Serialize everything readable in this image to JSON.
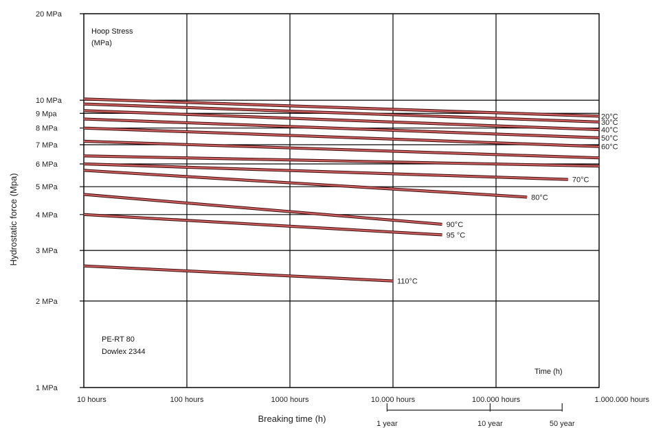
{
  "chart_data": {
    "type": "line",
    "xlabel": "Breaking time (h)",
    "ylabel": "Hydrostatic force (Mpa)",
    "x_scale": "log",
    "y_scale": "log",
    "xlim": [
      10,
      1000000
    ],
    "ylim": [
      1,
      20
    ],
    "grid": true,
    "x_ticks": [
      {
        "value": 10,
        "label": "10 hours"
      },
      {
        "value": 100,
        "label": "100 hours"
      },
      {
        "value": 1000,
        "label": "1000 hours"
      },
      {
        "value": 10000,
        "label": "10.000 hours"
      },
      {
        "value": 100000,
        "label": "100.000 hours"
      },
      {
        "value": 1000000,
        "label": "1.000.000 hours"
      }
    ],
    "y_ticks": [
      {
        "value": 20,
        "label": "20 MPa"
      },
      {
        "value": 10,
        "label": "10 MPa"
      },
      {
        "value": 9,
        "label": "9 Mpa"
      },
      {
        "value": 8,
        "label": "8 MPa"
      },
      {
        "value": 7,
        "label": "7 MPa"
      },
      {
        "value": 6,
        "label": "6 MPa"
      },
      {
        "value": 5,
        "label": "5 MPa"
      },
      {
        "value": 4,
        "label": "4 MPa"
      },
      {
        "value": 3,
        "label": "3 MPa"
      },
      {
        "value": 2,
        "label": "2 MPa"
      },
      {
        "value": 1,
        "label": "1 MPa"
      }
    ],
    "time_marks": [
      {
        "label": "1 year",
        "value": 8760
      },
      {
        "label": "10 year",
        "value": 87600
      },
      {
        "label": "50 year",
        "value": 438000
      }
    ],
    "annotations": {
      "top_left": [
        "Hoop Stress",
        "(MPa)"
      ],
      "bottom_left": [
        "PE-RT 80",
        "Dowlex 2344"
      ],
      "bottom_right": "Time (h)"
    },
    "series": [
      {
        "name": "20°C",
        "x": [
          10,
          1000000
        ],
        "y": [
          10.1,
          8.8
        ]
      },
      {
        "name": "30°C",
        "x": [
          10,
          1000000
        ],
        "y": [
          9.7,
          8.4
        ]
      },
      {
        "name": "40°C",
        "x": [
          10,
          1000000
        ],
        "y": [
          9.2,
          7.9
        ]
      },
      {
        "name": "50°C",
        "x": [
          10,
          1000000
        ],
        "y": [
          8.6,
          7.4
        ]
      },
      {
        "name": "60°C",
        "x": [
          10,
          1000000
        ],
        "y": [
          8.0,
          6.9
        ]
      },
      {
        "name": "",
        "x": [
          10,
          1000000
        ],
        "y": [
          7.2,
          6.3
        ]
      },
      {
        "name": "",
        "x": [
          10,
          1000000
        ],
        "y": [
          6.4,
          5.9
        ]
      },
      {
        "name": "70°C",
        "x": [
          10,
          500000
        ],
        "y": [
          6.0,
          5.3
        ]
      },
      {
        "name": "80°C",
        "x": [
          10,
          200000
        ],
        "y": [
          5.7,
          4.6
        ]
      },
      {
        "name": "90°C",
        "x": [
          10,
          30000
        ],
        "y": [
          4.7,
          3.7
        ]
      },
      {
        "name": "95 °C",
        "x": [
          10,
          30000
        ],
        "y": [
          4.0,
          3.4
        ]
      },
      {
        "name": "110°C",
        "x": [
          10,
          10000
        ],
        "y": [
          2.65,
          2.35
        ]
      }
    ],
    "line_color": "#d06060",
    "grid_color": "#000000"
  }
}
